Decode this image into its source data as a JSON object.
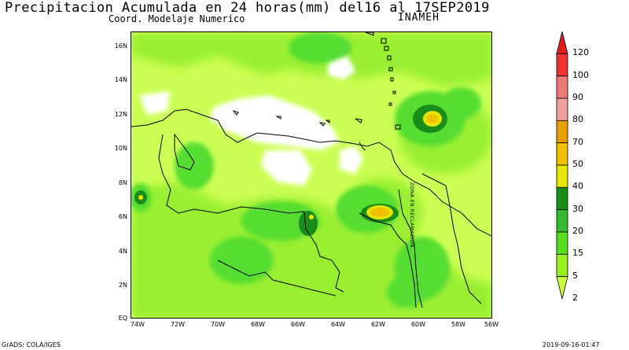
{
  "header": {
    "title": "Precipitacion Acumulada en 24 horas(mm) del16 al 17SEP2019",
    "subtitle": "Coord. Modelaje Numerico",
    "agency": "INAMEH"
  },
  "map": {
    "lat_labels": [
      "16N",
      "14N",
      "12N",
      "10N",
      "8N",
      "6N",
      "4N",
      "2N",
      "EQ"
    ],
    "lon_labels": [
      "74W",
      "72W",
      "70W",
      "68W",
      "66W",
      "64W",
      "62W",
      "60W",
      "58W",
      "56W"
    ],
    "zone_label": "ZONA EN RECLAMACION"
  },
  "legend": {
    "levels": [
      "120",
      "100",
      "90",
      "80",
      "70",
      "50",
      "40",
      "30",
      "20",
      "15",
      "5",
      "2"
    ],
    "colors": [
      "#e02020",
      "#ee3333",
      "#ee7777",
      "#f0a0a0",
      "#e8a000",
      "#f0c000",
      "#e6e600",
      "#1a8c1a",
      "#33bb33",
      "#55dd22",
      "#99ee22",
      "#ccff44"
    ]
  },
  "footer": {
    "left": "GrADS: COLA/IGES",
    "right": "2019-09-16-01:47"
  }
}
